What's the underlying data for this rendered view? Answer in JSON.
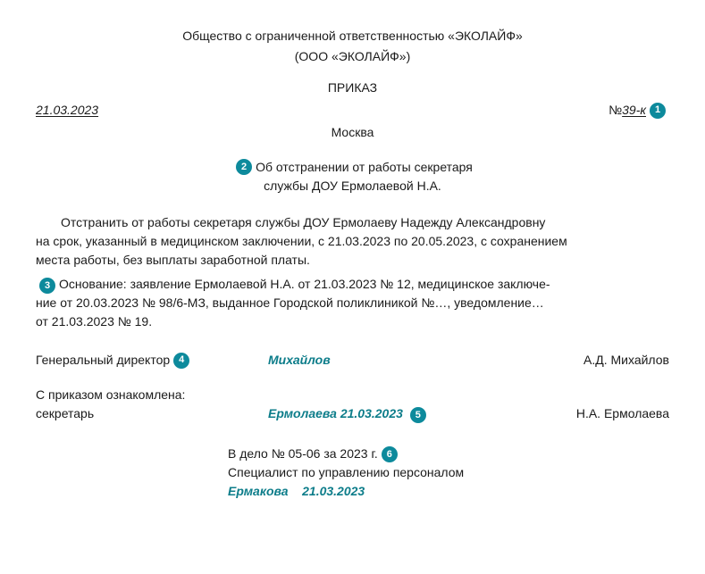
{
  "header": {
    "company_full": "Общество с ограниченной ответственностью «ЭКОЛАЙФ»",
    "company_short": "(ООО «ЭКОЛАЙФ»)",
    "order_word": "ПРИКАЗ",
    "date": "21.03.2023",
    "num_prefix": "№ ",
    "num": "39-к",
    "city": "Москва"
  },
  "subject": {
    "line1": "Об отстранении от работы секретаря",
    "line2": "службы ДОУ Ермолаевой Н.А."
  },
  "body": {
    "p1": "Отстранить от работы секретаря службы ДОУ Ермолаеву Надежду Александровну",
    "p2": "на срок, указанный в медицинском заключении, с 21.03.2023 по 20.05.2023, с сохранением",
    "p3": "места работы, без выплаты заработной платы."
  },
  "basis": {
    "l1": "Основание: заявление Ермолаевой Н.А. от 21.03.2023 № 12, медицинское заключе-",
    "l2": "ние от 20.03.2023 № 98/6-МЗ, выданное Городской поликлиникой №…, уведомление…",
    "l3": "от 21.03.2023 № 19."
  },
  "signature": {
    "role": "Генеральный директор",
    "sign": "Михайлов",
    "name": "А.Д. Михайлов"
  },
  "ack": {
    "title": "С приказом ознакомлена:",
    "role": "секретарь",
    "sign": "Ермолаева",
    "date": "21.03.2023",
    "name": "Н.А. Ермолаева"
  },
  "file": {
    "line1_a": "В дело № 05-06 за 2023 г.",
    "line2": "Специалист по управлению персоналом",
    "sign": "Ермакова",
    "date": "21.03.2023"
  },
  "badges": {
    "b1": "1",
    "b2": "2",
    "b3": "3",
    "b4": "4",
    "b5": "5",
    "b6": "6"
  },
  "colors": {
    "badge_bg": "#0d8a9c",
    "badge_fg": "#ffffff",
    "hand": "#0d7d8a",
    "text": "#1a1a1a",
    "bg": "#ffffff"
  }
}
